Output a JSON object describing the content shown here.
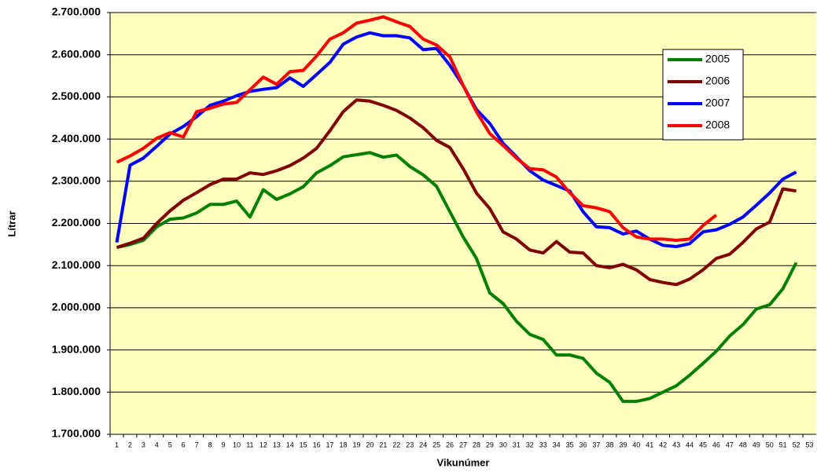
{
  "chart_data": {
    "type": "line",
    "x_label": "Vikunúmer",
    "y_label": "Lítrar",
    "categories": [
      "1",
      "2",
      "3",
      "4",
      "5",
      "6",
      "7",
      "8",
      "9",
      "10",
      "11",
      "12",
      "13",
      "14",
      "15",
      "16",
      "17",
      "18",
      "19",
      "20",
      "21",
      "22",
      "23",
      "24",
      "25",
      "26",
      "27",
      "28",
      "29",
      "30",
      "31",
      "32",
      "33",
      "34",
      "35",
      "36",
      "37",
      "38",
      "39",
      "40",
      "41",
      "42",
      "43",
      "44",
      "45",
      "46",
      "47",
      "48",
      "49",
      "50",
      "51",
      "52",
      "53"
    ],
    "series": [
      {
        "name": "2005",
        "color": "#008000",
        "values": [
          2143000,
          2150000,
          2160000,
          2192000,
          2210000,
          2213000,
          2225000,
          2245000,
          2245000,
          2253000,
          2215000,
          2280000,
          2257000,
          2270000,
          2287000,
          2320000,
          2337000,
          2358000,
          2363000,
          2368000,
          2357000,
          2362000,
          2335000,
          2315000,
          2288000,
          2228000,
          2168000,
          2117000,
          2035000,
          2010000,
          1968000,
          1937000,
          1925000,
          1888000,
          1888000,
          1880000,
          1845000,
          1823000,
          1778000,
          1778000,
          1785000,
          1800000,
          1815000,
          1840000,
          1868000,
          1897000,
          1933000,
          1960000,
          1997000,
          2007000,
          2045000,
          2107000,
          null
        ]
      },
      {
        "name": "2006",
        "color": "#800000",
        "values": [
          2143000,
          2153000,
          2165000,
          2200000,
          2230000,
          2255000,
          2273000,
          2292000,
          2305000,
          2305000,
          2320000,
          2316000,
          2325000,
          2337000,
          2355000,
          2378000,
          2420000,
          2465000,
          2493000,
          2490000,
          2480000,
          2468000,
          2450000,
          2427000,
          2397000,
          2380000,
          2330000,
          2272000,
          2235000,
          2180000,
          2163000,
          2137000,
          2130000,
          2157000,
          2132000,
          2130000,
          2100000,
          2095000,
          2103000,
          2090000,
          2067000,
          2060000,
          2055000,
          2068000,
          2090000,
          2117000,
          2127000,
          2155000,
          2187000,
          2203000,
          2282000,
          2277000,
          null
        ]
      },
      {
        "name": "2007",
        "color": "#0000ff",
        "values": [
          2155000,
          2338000,
          2355000,
          2383000,
          2412000,
          2430000,
          2453000,
          2480000,
          2490000,
          2503000,
          2513000,
          2518000,
          2522000,
          2545000,
          2525000,
          2553000,
          2582000,
          2625000,
          2642000,
          2652000,
          2645000,
          2645000,
          2640000,
          2612000,
          2615000,
          2575000,
          2527000,
          2470000,
          2437000,
          2390000,
          2358000,
          2325000,
          2303000,
          2290000,
          2277000,
          2228000,
          2192000,
          2190000,
          2175000,
          2182000,
          2163000,
          2148000,
          2145000,
          2152000,
          2180000,
          2185000,
          2198000,
          2215000,
          2243000,
          2272000,
          2305000,
          2322000,
          null
        ]
      },
      {
        "name": "2008",
        "color": "#ff0000",
        "values": [
          2345000,
          2360000,
          2378000,
          2402000,
          2415000,
          2405000,
          2465000,
          2473000,
          2483000,
          2487000,
          2517000,
          2547000,
          2530000,
          2560000,
          2563000,
          2597000,
          2637000,
          2652000,
          2675000,
          2682000,
          2690000,
          2678000,
          2667000,
          2637000,
          2623000,
          2595000,
          2527000,
          2465000,
          2413000,
          2385000,
          2355000,
          2330000,
          2327000,
          2310000,
          2273000,
          2242000,
          2237000,
          2228000,
          2190000,
          2168000,
          2163000,
          2163000,
          2160000,
          2163000,
          2195000,
          2220000,
          null,
          null,
          null,
          null,
          null,
          null,
          null
        ]
      }
    ],
    "ylim": [
      1700000,
      2700000
    ],
    "yticks": [
      {
        "value": 1700000,
        "label": "1.700.000"
      },
      {
        "value": 1800000,
        "label": "1.800.000"
      },
      {
        "value": 1900000,
        "label": "1.900.000"
      },
      {
        "value": 2000000,
        "label": "2.000.000"
      },
      {
        "value": 2100000,
        "label": "2.100.000"
      },
      {
        "value": 2200000,
        "label": "2.200.000"
      },
      {
        "value": 2300000,
        "label": "2.300.000"
      },
      {
        "value": 2400000,
        "label": "2.400.000"
      },
      {
        "value": 2500000,
        "label": "2.500.000"
      },
      {
        "value": 2600000,
        "label": "2.600.000"
      },
      {
        "value": 2700000,
        "label": "2.700.000"
      }
    ],
    "grid": true,
    "plot_background": "#ffffc0"
  }
}
